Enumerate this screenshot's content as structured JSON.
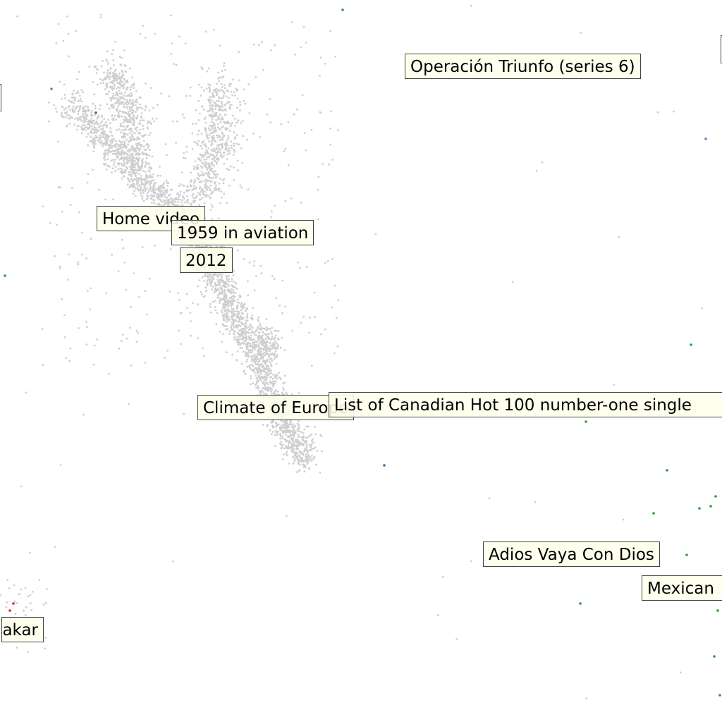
{
  "labels": [
    {
      "text": "Operación Triunfo (series 6)"
    },
    {
      "text": "Home video"
    },
    {
      "text": "1959 in aviation"
    },
    {
      "text": "2012"
    },
    {
      "text": "Climate of Europe"
    },
    {
      "text": "List of Canadian Hot 100 number-one single"
    },
    {
      "text": "Adios Vaya Con Dios"
    },
    {
      "text": "Mexican"
    },
    {
      "text": "akar"
    }
  ]
}
